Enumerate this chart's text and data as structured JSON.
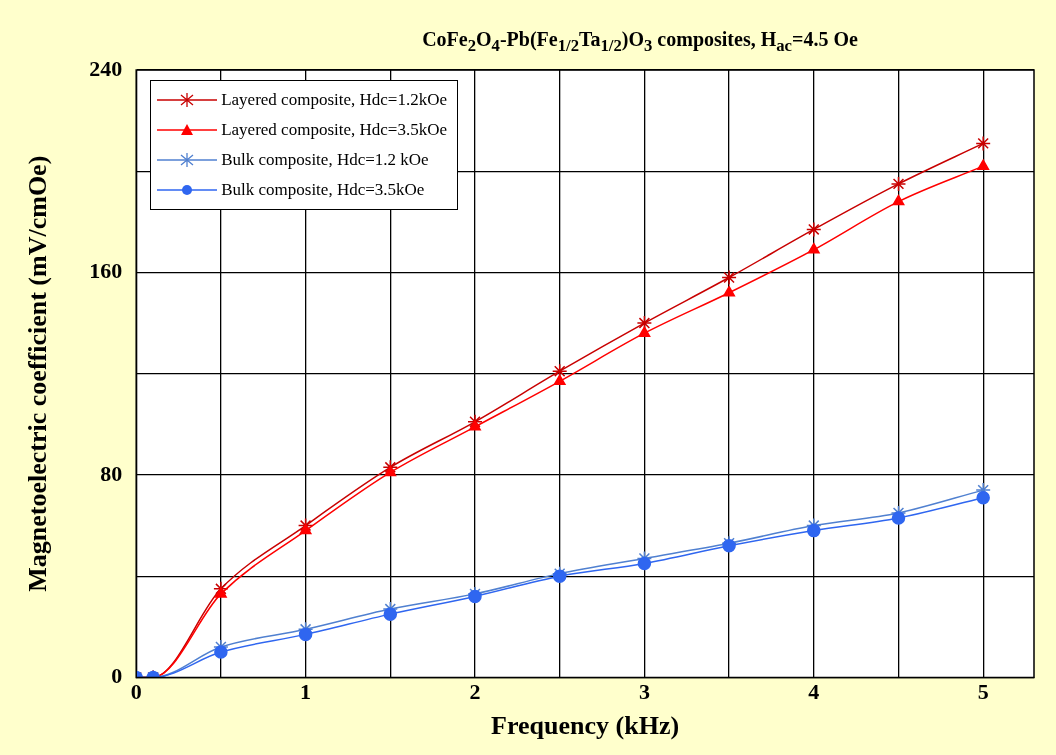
{
  "chart_data": {
    "type": "line",
    "title": "CoFe$_{2}$O$_{4}$-Pb(Fe$_{1/2}$Ta$_{1/2}$)O$_{3}$ composites, H$_{ac}$=4.5 Oe",
    "xlabel": "Frequency (kHz)",
    "ylabel": "Magnetoelectric coefficient (mV/cmOe)",
    "x": [
      0,
      0.1,
      0.5,
      1,
      1.5,
      2,
      2.5,
      3,
      3.5,
      4,
      4.5,
      5
    ],
    "series": [
      {
        "name": "Layered composite, Hdc=1.2kOe",
        "color": "#c80000",
        "marker": "cross",
        "values": [
          0,
          0,
          35,
          60,
          83,
          101,
          121,
          140,
          158,
          177,
          195,
          211
        ]
      },
      {
        "name": "Layered composite, Hdc=3.5kOe",
        "color": "#ff0000",
        "marker": "triangle",
        "values": [
          0,
          0,
          33,
          58,
          81,
          99,
          117,
          136,
          152,
          169,
          188,
          202
        ]
      },
      {
        "name": "Bulk composite, Hdc=1.2 kOe",
        "color": "#5080d0",
        "marker": "cross",
        "values": [
          0,
          0,
          12,
          19,
          27,
          33,
          41,
          47,
          53,
          60,
          65,
          74
        ]
      },
      {
        "name": "Bulk composite, Hdc=3.5kOe",
        "color": "#2f66f0",
        "marker": "circle",
        "values": [
          0,
          0,
          10,
          17,
          25,
          32,
          40,
          45,
          52,
          58,
          63,
          71
        ]
      }
    ],
    "xlim": [
      0,
      5.3
    ],
    "xticks": [
      0,
      {
        "value": 0.5,
        "label": null
      },
      1,
      {
        "value": 1.5,
        "label": null
      },
      2,
      {
        "value": 2.5,
        "label": null
      },
      3,
      {
        "value": 3.5,
        "label": null
      },
      4,
      {
        "value": 4.5,
        "label": null
      },
      5
    ],
    "ylim": [
      0,
      240
    ],
    "yticks": [
      0,
      {
        "value": 40,
        "label": null
      },
      80,
      {
        "value": 120,
        "label": null
      },
      160,
      {
        "value": 200,
        "label": null
      },
      240
    ],
    "grid": true,
    "legend": "top left",
    "line_style": "solid"
  }
}
